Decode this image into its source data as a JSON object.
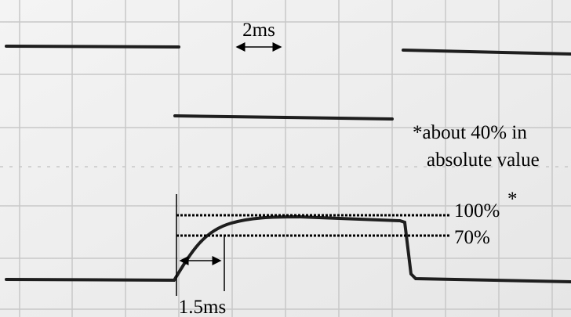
{
  "annotations": {
    "time_scale": "2ms",
    "note_line1": "*about 40% in",
    "note_line2": "absolute value",
    "level_high": "100%",
    "level_high_mark": "*",
    "level_low": "70%",
    "rise_time": "1.5ms"
  }
}
